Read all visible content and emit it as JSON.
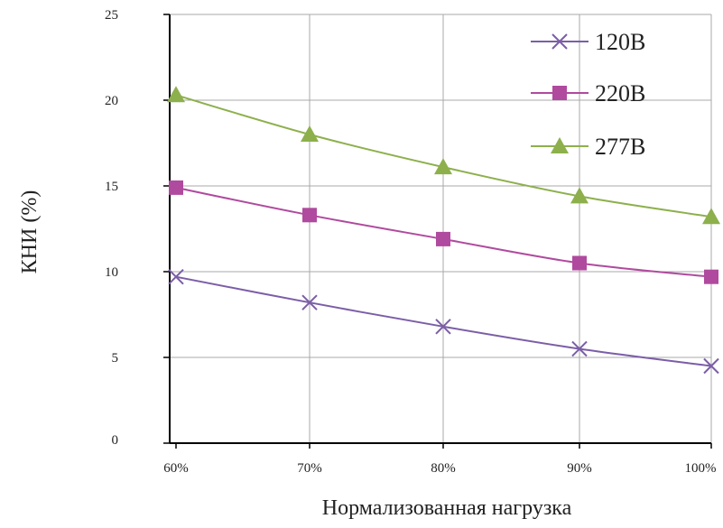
{
  "chart_data": {
    "type": "line",
    "title": "",
    "xlabel": "Нормализованная нагрузка",
    "ylabel": "КНИ (%)",
    "categories": [
      "60%",
      "70%",
      "80%",
      "90%",
      "100%"
    ],
    "ylim": [
      0,
      25
    ],
    "yticks": [
      0,
      5,
      10,
      15,
      20,
      25
    ],
    "grid": true,
    "legend_position": "top-right",
    "series": [
      {
        "name": "120В",
        "marker": "x",
        "color": "#7b5ea7",
        "values": [
          9.7,
          8.2,
          6.8,
          5.5,
          4.5
        ]
      },
      {
        "name": "220В",
        "marker": "square",
        "color": "#b04a9e",
        "values": [
          14.9,
          13.3,
          11.9,
          10.5,
          9.7
        ]
      },
      {
        "name": "277В",
        "marker": "triangle",
        "color": "#8db04c",
        "values": [
          20.3,
          18.0,
          16.1,
          14.4,
          13.2
        ]
      }
    ]
  }
}
